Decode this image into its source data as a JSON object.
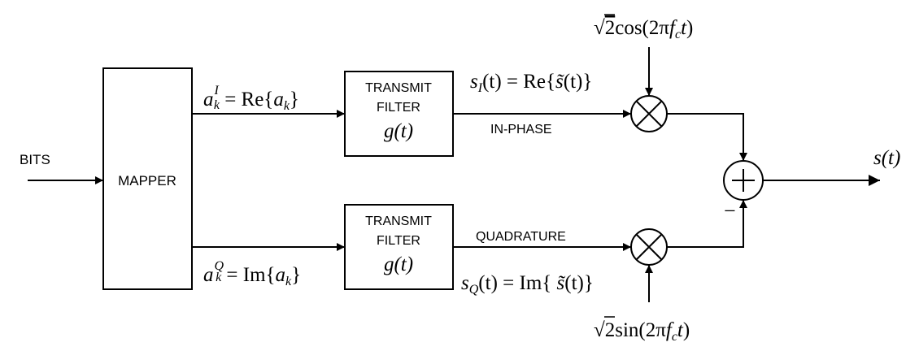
{
  "labels": {
    "bits": "BITS",
    "mapper": "MAPPER",
    "transmit": "TRANSMIT",
    "filter": "FILTER",
    "in_phase": "IN-PHASE",
    "quadrature": "QUADRATURE",
    "minus": "−"
  },
  "math": {
    "g_t": "g(t)",
    "output": "s(t)",
    "aI_lhs": "a",
    "aI_sup": "I",
    "aI_sub": "k",
    "aI_rhs": " = Re{",
    "aI_arg": "a",
    "aI_arg_sub": "k",
    "aI_close": "}",
    "aQ_lhs": "a",
    "aQ_sup": "Q",
    "aQ_sub": "k",
    "aQ_rhs": " = Im{",
    "aQ_arg": "a",
    "aQ_arg_sub": "k",
    "aQ_close": "}",
    "sI_s": "s",
    "sI_sub": "I",
    "sI_rest": "(t) = Re{",
    "sI_tilde_s": "s̃",
    "sI_close": "(t)}",
    "sQ_s": "s",
    "sQ_sub": "Q",
    "sQ_rest": "(t) = Im{ ",
    "sQ_tilde_s": "s̃",
    "sQ_close": "(t)}",
    "cos_root": "√",
    "cos_two": "2",
    "cos_fn": "cos(2π",
    "cos_f": "f",
    "cos_c": "c",
    "cos_t": "t",
    "cos_end": ")",
    "sin_root": "√",
    "sin_two": "2",
    "sin_fn": "sin(2π",
    "sin_f": "f",
    "sin_c": "c",
    "sin_t": "t",
    "sin_end": ")"
  }
}
